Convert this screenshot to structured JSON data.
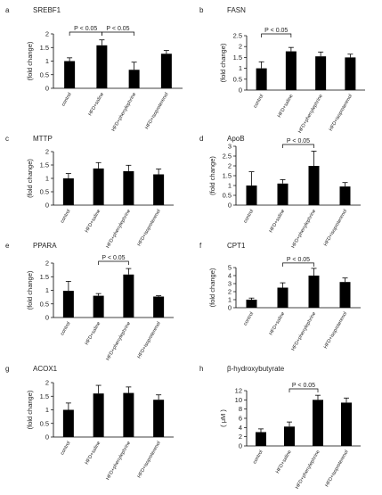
{
  "chart_data": [
    {
      "type": "bar",
      "panel_letter": "a",
      "title": "SREBF1",
      "ylabel": "(fold change)",
      "categories": [
        "control",
        "HFD+saline",
        "HFD+phenylephrine",
        "HFD+isoproterenol"
      ],
      "values": [
        1.0,
        1.58,
        0.68,
        1.27
      ],
      "errors": [
        0.12,
        0.2,
        0.28,
        0.12
      ],
      "ylim": [
        0,
        2
      ],
      "yticks": [
        "0",
        "0.5",
        "1",
        "1.5",
        "2"
      ],
      "significance": [
        {
          "label": "P < 0.05",
          "from": 0,
          "to": 1
        },
        {
          "label": "P < 0.05",
          "from": 1,
          "to": 2
        }
      ]
    },
    {
      "type": "bar",
      "panel_letter": "b",
      "title": "FASN",
      "ylabel": "(fold change)",
      "categories": [
        "control",
        "HFD+saline",
        "HFD+phenylephrine",
        "HFD+isoproterenol"
      ],
      "values": [
        1.0,
        1.78,
        1.55,
        1.5
      ],
      "errors": [
        0.3,
        0.18,
        0.2,
        0.15
      ],
      "ylim": [
        0,
        2.5
      ],
      "yticks": [
        "0",
        "0.5",
        "1",
        "1.5",
        "2",
        "2.5"
      ],
      "significance": [
        {
          "label": "P < 0.05",
          "from": 0,
          "to": 1
        }
      ]
    },
    {
      "type": "bar",
      "panel_letter": "c",
      "title": "MTTP",
      "ylabel": "(fold change)",
      "categories": [
        "control",
        "HFD+saline",
        "HFD+phenylephrine",
        "HFD+isoproterenol"
      ],
      "values": [
        1.0,
        1.37,
        1.27,
        1.15
      ],
      "errors": [
        0.18,
        0.22,
        0.22,
        0.2
      ],
      "ylim": [
        0,
        2
      ],
      "yticks": [
        "0",
        "0.5",
        "1",
        "1.5",
        "2"
      ],
      "significance": []
    },
    {
      "type": "bar",
      "panel_letter": "d",
      "title": "ApoB",
      "ylabel": "(fold change)",
      "categories": [
        "control",
        "HFD+saline",
        "HFD+phenylephrine",
        "HFD+isoproterenol"
      ],
      "values": [
        1.0,
        1.1,
        2.0,
        0.95
      ],
      "errors": [
        0.7,
        0.2,
        0.75,
        0.2
      ],
      "ylim": [
        0,
        3
      ],
      "yticks": [
        "0",
        "0.5",
        "1",
        "1.5",
        "2",
        "2.5",
        "3"
      ],
      "significance": [
        {
          "label": "P < 0.05",
          "from": 1,
          "to": 2
        }
      ]
    },
    {
      "type": "bar",
      "panel_letter": "e",
      "title": "PPARA",
      "ylabel": "(fold change)",
      "categories": [
        "control",
        "HFD+saline",
        "HFD+phenylephrine",
        "HFD+isoproterenol"
      ],
      "values": [
        0.98,
        0.8,
        1.58,
        0.77
      ],
      "errors": [
        0.35,
        0.08,
        0.22,
        0.03
      ],
      "ylim": [
        0,
        2
      ],
      "yticks": [
        "0",
        "0.5",
        "1",
        "1.5",
        "2"
      ],
      "significance": [
        {
          "label": "P < 0.05",
          "from": 1,
          "to": 2
        }
      ]
    },
    {
      "type": "bar",
      "panel_letter": "f",
      "title": "CPT1",
      "ylabel": "(fold change)",
      "categories": [
        "control",
        "HFD+saline",
        "HFD+phenylephrine",
        "HFD+isoproterenol"
      ],
      "values": [
        1.0,
        2.5,
        4.0,
        3.2
      ],
      "errors": [
        0.2,
        0.6,
        0.9,
        0.5
      ],
      "ylim": [
        0,
        5
      ],
      "yticks": [
        "0",
        "1",
        "2",
        "3",
        "4",
        "5"
      ],
      "significance": [
        {
          "label": "P < 0.05",
          "from": 1,
          "to": 2
        }
      ]
    },
    {
      "type": "bar",
      "panel_letter": "g",
      "title": "ACOX1",
      "ylabel": "(fold change)",
      "categories": [
        "control",
        "HFD+saline",
        "HFD+phenylephrine",
        "HFD+isoproterenol"
      ],
      "values": [
        1.0,
        1.6,
        1.62,
        1.37
      ],
      "errors": [
        0.25,
        0.3,
        0.22,
        0.18
      ],
      "ylim": [
        0,
        2
      ],
      "yticks": [
        "0",
        "0.5",
        "1",
        "1.5",
        "2"
      ],
      "significance": []
    },
    {
      "type": "bar",
      "panel_letter": "h",
      "title": "β-hydroxybutyrate",
      "ylabel": "( μM )",
      "categories": [
        "control",
        "HFD+saline",
        "HFD+phenylephrine",
        "HFD+isoproterenol"
      ],
      "values": [
        3.0,
        4.2,
        10.0,
        9.4
      ],
      "errors": [
        0.7,
        1.0,
        1.0,
        1.0
      ],
      "ylim": [
        0,
        12
      ],
      "yticks": [
        "0",
        "2",
        "4",
        "6",
        "8",
        "10",
        "12"
      ],
      "significance": [
        {
          "label": "P < 0.05",
          "from": 1,
          "to": 2
        }
      ]
    }
  ],
  "colors": {
    "bar": "#000000",
    "axis": "#000000",
    "text": "#222222"
  }
}
